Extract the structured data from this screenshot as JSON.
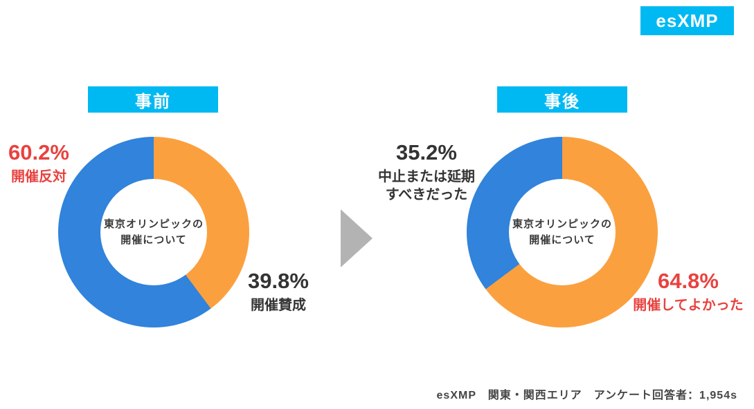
{
  "badge": "esXMP",
  "footer": "esXMP　関東・関西エリア　アンケート回答者：1,954s",
  "colors": {
    "accent_cyan": "#00B9F2",
    "slice_blue": "#3183DB",
    "slice_orange": "#FBA03F",
    "highlight_red": "#E8423F",
    "arrow_gray": "#B3B3B3"
  },
  "chart_data": [
    {
      "type": "pie",
      "variant": "donut",
      "title": "事前",
      "center_label": "東京オリンピックの\n開催について",
      "start_angle_deg": 0,
      "direction": "clockwise",
      "legend_position": "none",
      "slices": [
        {
          "label": "開催賛成",
          "value": 39.8,
          "pct_text": "39.8%",
          "color": "#FBA03F",
          "label_color": "#333333"
        },
        {
          "label": "開催反対",
          "value": 60.2,
          "pct_text": "60.2%",
          "color": "#3183DB",
          "label_color": "#E8423F"
        }
      ]
    },
    {
      "type": "pie",
      "variant": "donut",
      "title": "事後",
      "center_label": "東京オリンピックの\n開催について",
      "start_angle_deg": 0,
      "direction": "clockwise",
      "legend_position": "none",
      "slices": [
        {
          "label": "開催してよかった",
          "value": 64.8,
          "pct_text": "64.8%",
          "color": "#FBA03F",
          "label_color": "#E8423F"
        },
        {
          "label": "中止または延期\nすべきだった",
          "value": 35.2,
          "pct_text": "35.2%",
          "color": "#3183DB",
          "label_color": "#333333"
        }
      ]
    }
  ]
}
